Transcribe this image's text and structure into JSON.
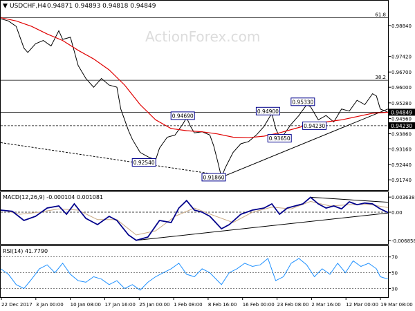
{
  "header": {
    "symbol": "USDCHF,H4",
    "ohlc": "0.94871 0.94893 0.94818 0.94849"
  },
  "watermark": "ActionForex.com",
  "colors": {
    "price": "#000000",
    "ma": "#e00000",
    "macd": "#00008b",
    "signal": "#c8a882",
    "rsi": "#1e90ff",
    "box_border": "#00008b",
    "level_label_bg": "#000000",
    "grid": "#000000"
  },
  "chart_data": [
    {
      "type": "line",
      "name": "price",
      "ylim": [
        0.913,
        0.9995
      ],
      "y_ticks": [
        "0.98840",
        "0.97420",
        "0.96700",
        "0.96000",
        "0.95280",
        "0.94560",
        "0.93860",
        "0.93160",
        "0.92440",
        "0.91740"
      ],
      "y_tick_values": [
        0.9884,
        0.9742,
        0.967,
        0.96,
        0.9528,
        0.9456,
        0.9386,
        0.9316,
        0.9244,
        0.9174
      ],
      "levels": [
        {
          "label": "61.8",
          "value": 0.992,
          "style": "solid"
        },
        {
          "label": "38.2",
          "value": 0.9632,
          "style": "solid"
        },
        {
          "label": "",
          "value": 0.94849,
          "style": "solid"
        },
        {
          "label": "",
          "value": 0.9423,
          "style": "dashed"
        }
      ],
      "current_labels": [
        {
          "text": "0.94849",
          "value": 0.94849
        },
        {
          "text": "0.94230",
          "value": 0.9423
        }
      ],
      "annotations": [
        {
          "text": "0.94690",
          "x": 0.47,
          "value": 0.9469
        },
        {
          "text": "0.92540",
          "x": 0.37,
          "value": 0.9254
        },
        {
          "text": "0.91860",
          "x": 0.55,
          "value": 0.9186
        },
        {
          "text": "0.94900",
          "x": 0.69,
          "value": 0.949
        },
        {
          "text": "0.93650",
          "x": 0.72,
          "value": 0.9365
        },
        {
          "text": "0.95330",
          "x": 0.78,
          "value": 0.9533
        },
        {
          "text": "0.94230",
          "x": 0.81,
          "value": 0.9423
        }
      ],
      "x_labels": [
        "22 Dec 2017",
        "3 Jan 00:00",
        "10 Jan 08:00",
        "17 Jan 16:00",
        "25 Jan 00:00",
        "1 Feb 08:00",
        "8 Feb 16:00",
        "16 Feb 00:00",
        "23 Feb 08:00",
        "2 Mar 16:00",
        "12 Mar 00:00",
        "19 Mar 08:00"
      ],
      "price_points": [
        [
          0.0,
          0.9915
        ],
        [
          0.02,
          0.9905
        ],
        [
          0.04,
          0.988
        ],
        [
          0.06,
          0.978
        ],
        [
          0.07,
          0.976
        ],
        [
          0.09,
          0.98
        ],
        [
          0.11,
          0.9815
        ],
        [
          0.13,
          0.979
        ],
        [
          0.15,
          0.986
        ],
        [
          0.16,
          0.982
        ],
        [
          0.18,
          0.983
        ],
        [
          0.2,
          0.97
        ],
        [
          0.22,
          0.964
        ],
        [
          0.24,
          0.96
        ],
        [
          0.26,
          0.964
        ],
        [
          0.28,
          0.961
        ],
        [
          0.3,
          0.96
        ],
        [
          0.31,
          0.95
        ],
        [
          0.33,
          0.94
        ],
        [
          0.34,
          0.936
        ],
        [
          0.36,
          0.93
        ],
        [
          0.38,
          0.928
        ],
        [
          0.4,
          0.9265
        ],
        [
          0.41,
          0.932
        ],
        [
          0.43,
          0.937
        ],
        [
          0.45,
          0.938
        ],
        [
          0.47,
          0.943
        ],
        [
          0.48,
          0.946
        ],
        [
          0.49,
          0.942
        ],
        [
          0.5,
          0.939
        ],
        [
          0.52,
          0.9395
        ],
        [
          0.54,
          0.938
        ],
        [
          0.55,
          0.933
        ],
        [
          0.56,
          0.926
        ],
        [
          0.57,
          0.9186
        ],
        [
          0.58,
          0.923
        ],
        [
          0.6,
          0.93
        ],
        [
          0.62,
          0.934
        ],
        [
          0.64,
          0.935
        ],
        [
          0.66,
          0.938
        ],
        [
          0.68,
          0.942
        ],
        [
          0.7,
          0.948
        ],
        [
          0.71,
          0.941
        ],
        [
          0.72,
          0.937
        ],
        [
          0.73,
          0.938
        ],
        [
          0.75,
          0.943
        ],
        [
          0.77,
          0.947
        ],
        [
          0.79,
          0.952
        ],
        [
          0.8,
          0.951
        ],
        [
          0.82,
          0.945
        ],
        [
          0.84,
          0.947
        ],
        [
          0.86,
          0.944
        ],
        [
          0.88,
          0.95
        ],
        [
          0.9,
          0.949
        ],
        [
          0.92,
          0.954
        ],
        [
          0.94,
          0.952
        ],
        [
          0.96,
          0.957
        ],
        [
          0.97,
          0.956
        ],
        [
          0.98,
          0.95
        ],
        [
          1.0,
          0.9485
        ]
      ],
      "ma_points": [
        [
          0.0,
          0.992
        ],
        [
          0.04,
          0.9905
        ],
        [
          0.08,
          0.988
        ],
        [
          0.12,
          0.9845
        ],
        [
          0.16,
          0.9815
        ],
        [
          0.2,
          0.977
        ],
        [
          0.24,
          0.973
        ],
        [
          0.28,
          0.968
        ],
        [
          0.32,
          0.961
        ],
        [
          0.36,
          0.952
        ],
        [
          0.4,
          0.945
        ],
        [
          0.44,
          0.941
        ],
        [
          0.48,
          0.94
        ],
        [
          0.52,
          0.9395
        ],
        [
          0.56,
          0.9385
        ],
        [
          0.6,
          0.937
        ],
        [
          0.64,
          0.9368
        ],
        [
          0.68,
          0.9375
        ],
        [
          0.72,
          0.939
        ],
        [
          0.76,
          0.941
        ],
        [
          0.8,
          0.943
        ],
        [
          0.84,
          0.944
        ],
        [
          0.88,
          0.945
        ],
        [
          0.92,
          0.9465
        ],
        [
          0.96,
          0.948
        ],
        [
          1.0,
          0.9485
        ]
      ],
      "trendlines": [
        {
          "from": [
            0.0,
            0.9345
          ],
          "to": [
            0.57,
            0.9195
          ],
          "style": "dashed"
        },
        {
          "from": [
            0.57,
            0.9186
          ],
          "to": [
            1.0,
            0.95
          ],
          "style": "solid"
        }
      ]
    },
    {
      "type": "line",
      "name": "macd",
      "label": "MACD(12,26,9) -0.000104 0.001081",
      "ylim": [
        -0.0075,
        0.0045
      ],
      "y_ticks": [
        "0.003638",
        "0.00",
        "-0.006858"
      ],
      "y_tick_values": [
        0.003638,
        0.0,
        -0.006858
      ],
      "macd_points": [
        [
          0.0,
          0.0005
        ],
        [
          0.03,
          0.0002
        ],
        [
          0.06,
          -0.002
        ],
        [
          0.09,
          -0.001
        ],
        [
          0.12,
          0.001
        ],
        [
          0.15,
          0.0015
        ],
        [
          0.17,
          -0.0005
        ],
        [
          0.19,
          0.002
        ],
        [
          0.22,
          -0.0015
        ],
        [
          0.25,
          -0.003
        ],
        [
          0.28,
          -0.001
        ],
        [
          0.3,
          -0.002
        ],
        [
          0.33,
          -0.0055
        ],
        [
          0.35,
          -0.0068
        ],
        [
          0.38,
          -0.006
        ],
        [
          0.41,
          -0.002
        ],
        [
          0.44,
          -0.0025
        ],
        [
          0.46,
          0.001
        ],
        [
          0.48,
          0.0028
        ],
        [
          0.5,
          0.0005
        ],
        [
          0.52,
          0.0
        ],
        [
          0.54,
          -0.001
        ],
        [
          0.57,
          -0.004
        ],
        [
          0.59,
          -0.003
        ],
        [
          0.62,
          -0.0005
        ],
        [
          0.65,
          0.0005
        ],
        [
          0.68,
          0.001
        ],
        [
          0.7,
          0.002
        ],
        [
          0.72,
          -0.0005
        ],
        [
          0.74,
          0.001
        ],
        [
          0.76,
          0.0015
        ],
        [
          0.78,
          0.002
        ],
        [
          0.8,
          0.0036
        ],
        [
          0.82,
          0.002
        ],
        [
          0.84,
          0.001
        ],
        [
          0.86,
          0.0015
        ],
        [
          0.88,
          0.0008
        ],
        [
          0.9,
          0.0025
        ],
        [
          0.92,
          0.0018
        ],
        [
          0.94,
          0.0022
        ],
        [
          0.96,
          0.002
        ],
        [
          0.98,
          0.0008
        ],
        [
          1.0,
          -0.0001
        ]
      ],
      "signal_points": [
        [
          0.0,
          0.0006
        ],
        [
          0.05,
          -0.0005
        ],
        [
          0.1,
          0.0
        ],
        [
          0.15,
          0.0008
        ],
        [
          0.2,
          0.0005
        ],
        [
          0.25,
          -0.0018
        ],
        [
          0.3,
          -0.0018
        ],
        [
          0.35,
          -0.0055
        ],
        [
          0.4,
          -0.0045
        ],
        [
          0.45,
          -0.001
        ],
        [
          0.5,
          0.001
        ],
        [
          0.55,
          -0.0008
        ],
        [
          0.6,
          -0.0025
        ],
        [
          0.65,
          0.0
        ],
        [
          0.7,
          0.0012
        ],
        [
          0.75,
          0.0008
        ],
        [
          0.8,
          0.0026
        ],
        [
          0.85,
          0.0015
        ],
        [
          0.9,
          0.0018
        ],
        [
          0.95,
          0.0019
        ],
        [
          1.0,
          0.0011
        ]
      ],
      "trendlines": [
        {
          "from": [
            0.35,
            -0.0068
          ],
          "to": [
            1.0,
            -0.0002
          ],
          "style": "solid"
        },
        {
          "from": [
            0.8,
            0.0036
          ],
          "to": [
            1.0,
            0.0024
          ],
          "style": "solid"
        }
      ]
    },
    {
      "type": "line",
      "name": "rsi",
      "label": "RSI(14) 41.7790",
      "ylim": [
        20,
        82
      ],
      "y_ticks": [
        "70",
        "50",
        "30"
      ],
      "y_tick_values": [
        70,
        50,
        30
      ],
      "rsi_points": [
        [
          0.0,
          55
        ],
        [
          0.02,
          48
        ],
        [
          0.04,
          35
        ],
        [
          0.06,
          30
        ],
        [
          0.08,
          42
        ],
        [
          0.1,
          55
        ],
        [
          0.12,
          60
        ],
        [
          0.14,
          50
        ],
        [
          0.16,
          62
        ],
        [
          0.18,
          48
        ],
        [
          0.2,
          40
        ],
        [
          0.22,
          38
        ],
        [
          0.24,
          45
        ],
        [
          0.26,
          42
        ],
        [
          0.28,
          35
        ],
        [
          0.3,
          40
        ],
        [
          0.32,
          30
        ],
        [
          0.34,
          35
        ],
        [
          0.36,
          28
        ],
        [
          0.38,
          38
        ],
        [
          0.4,
          45
        ],
        [
          0.42,
          50
        ],
        [
          0.44,
          55
        ],
        [
          0.46,
          62
        ],
        [
          0.48,
          48
        ],
        [
          0.5,
          45
        ],
        [
          0.52,
          55
        ],
        [
          0.54,
          50
        ],
        [
          0.56,
          40
        ],
        [
          0.57,
          35
        ],
        [
          0.59,
          50
        ],
        [
          0.61,
          55
        ],
        [
          0.63,
          62
        ],
        [
          0.65,
          58
        ],
        [
          0.67,
          60
        ],
        [
          0.69,
          68
        ],
        [
          0.71,
          40
        ],
        [
          0.73,
          45
        ],
        [
          0.75,
          62
        ],
        [
          0.77,
          68
        ],
        [
          0.79,
          60
        ],
        [
          0.81,
          45
        ],
        [
          0.83,
          55
        ],
        [
          0.85,
          48
        ],
        [
          0.87,
          62
        ],
        [
          0.89,
          50
        ],
        [
          0.91,
          65
        ],
        [
          0.93,
          58
        ],
        [
          0.95,
          62
        ],
        [
          0.97,
          55
        ],
        [
          0.98,
          45
        ],
        [
          1.0,
          42
        ]
      ]
    }
  ]
}
